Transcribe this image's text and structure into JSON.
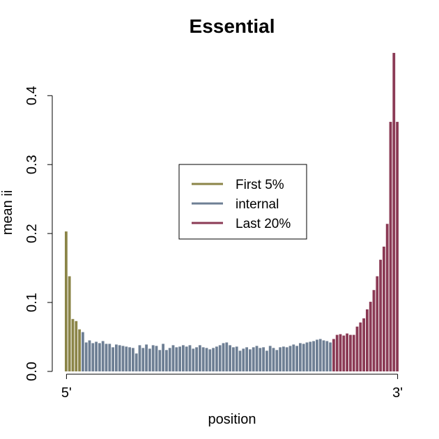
{
  "chart_data": {
    "type": "bar",
    "title": "Essential",
    "xlabel": "position",
    "ylabel": "mean ii",
    "xtick_labels": [
      "5'",
      "3'"
    ],
    "ylim": [
      0,
      0.47
    ],
    "yticks": [
      {
        "value": 0,
        "label": "0.0"
      },
      0.1,
      0.2,
      0.3,
      0.4
    ],
    "legend": "center",
    "series": [
      {
        "name": "First 5%",
        "color": "#8b8548",
        "values": [
          0.203,
          0.138,
          0.076,
          0.073,
          0.061
        ]
      },
      {
        "name": "internal",
        "color": "#6e7f94",
        "values": [
          0.057,
          0.042,
          0.045,
          0.041,
          0.043,
          0.041,
          0.044,
          0.04,
          0.04,
          0.035,
          0.039,
          0.038,
          0.037,
          0.036,
          0.035,
          0.034,
          0.026,
          0.038,
          0.034,
          0.039,
          0.033,
          0.038,
          0.037,
          0.031,
          0.04,
          0.031,
          0.034,
          0.038,
          0.035,
          0.036,
          0.038,
          0.036,
          0.038,
          0.033,
          0.035,
          0.038,
          0.035,
          0.034,
          0.032,
          0.034,
          0.036,
          0.038,
          0.041,
          0.042,
          0.038,
          0.035,
          0.036,
          0.03,
          0.033,
          0.035,
          0.032,
          0.035,
          0.037,
          0.034,
          0.035,
          0.03,
          0.037,
          0.034,
          0.031,
          0.035,
          0.036,
          0.035,
          0.037,
          0.039,
          0.037,
          0.041,
          0.04,
          0.042,
          0.043,
          0.044,
          0.046,
          0.047,
          0.045,
          0.044,
          0.042
        ]
      },
      {
        "name": "Last 20%",
        "color": "#8b3a55",
        "values": [
          0.047,
          0.053,
          0.054,
          0.052,
          0.055,
          0.053,
          0.053,
          0.065,
          0.071,
          0.077,
          0.09,
          0.101,
          0.118,
          0.138,
          0.162,
          0.181,
          0.214,
          0.362,
          0.462,
          0.362
        ]
      }
    ]
  }
}
